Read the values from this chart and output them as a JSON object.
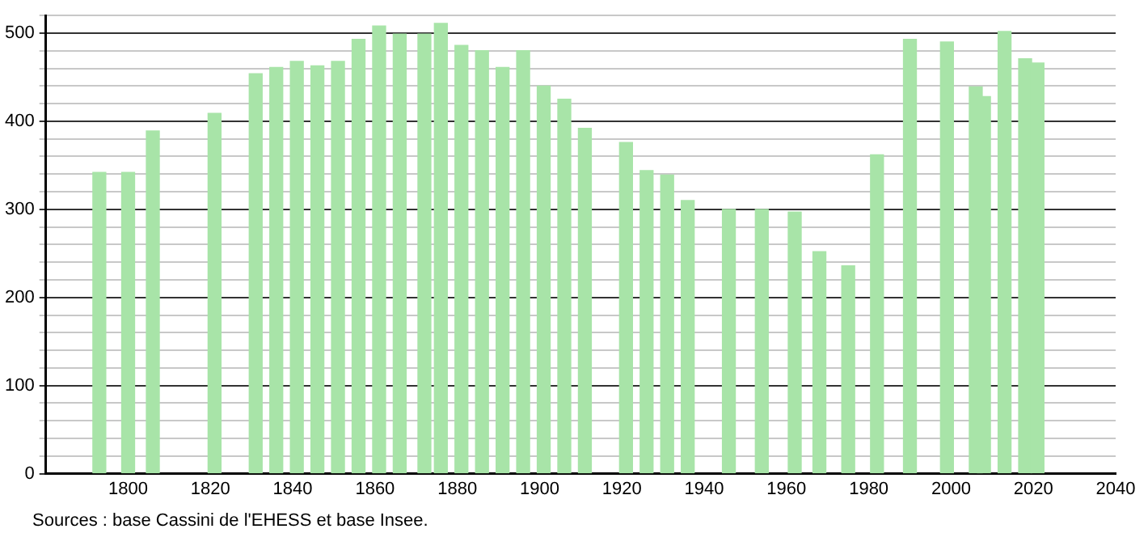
{
  "chart_data": {
    "type": "bar",
    "x": [
      1793,
      1800,
      1806,
      1821,
      1831,
      1836,
      1841,
      1846,
      1851,
      1856,
      1861,
      1866,
      1872,
      1876,
      1881,
      1886,
      1891,
      1896,
      1901,
      1906,
      1911,
      1921,
      1926,
      1931,
      1936,
      1946,
      1954,
      1962,
      1968,
      1975,
      1982,
      1990,
      1999,
      2006,
      2008,
      2013,
      2018,
      2021
    ],
    "values": [
      342,
      342,
      389,
      409,
      454,
      461,
      468,
      463,
      468,
      493,
      508,
      499,
      499,
      511,
      486,
      480,
      461,
      480,
      440,
      425,
      392,
      376,
      344,
      339,
      310,
      300,
      300,
      297,
      252,
      236,
      362,
      493,
      490,
      439,
      428,
      502,
      471,
      466
    ],
    "color": "#a8e4a8",
    "xlim": [
      1780,
      2040
    ],
    "xticks": [
      1800,
      1820,
      1840,
      1860,
      1880,
      1900,
      1920,
      1940,
      1960,
      1980,
      2000,
      2020,
      2040
    ],
    "ylim": [
      0,
      520
    ],
    "yticks": [
      0,
      {
        "value": 20,
        "label": null
      },
      {
        "value": 40,
        "label": null
      },
      {
        "value": 60,
        "label": null
      },
      {
        "value": 80,
        "label": null
      },
      100,
      {
        "value": 120,
        "label": null
      },
      {
        "value": 140,
        "label": null
      },
      {
        "value": 160,
        "label": null
      },
      {
        "value": 180,
        "label": null
      },
      200,
      {
        "value": 220,
        "label": null
      },
      {
        "value": 240,
        "label": null
      },
      {
        "value": 260,
        "label": null
      },
      {
        "value": 280,
        "label": null
      },
      300,
      {
        "value": 320,
        "label": null
      },
      {
        "value": 340,
        "label": null
      },
      {
        "value": 360,
        "label": null
      },
      {
        "value": 380,
        "label": null
      },
      400,
      {
        "value": 420,
        "label": null
      },
      {
        "value": 440,
        "label": null
      },
      {
        "value": 460,
        "label": null
      },
      {
        "value": 480,
        "label": null
      },
      500,
      {
        "value": 520,
        "label": null
      }
    ],
    "grid": "y",
    "legend": false,
    "annotations": [
      "Sources : base Cassini de l'EHESS et base Insee."
    ]
  }
}
